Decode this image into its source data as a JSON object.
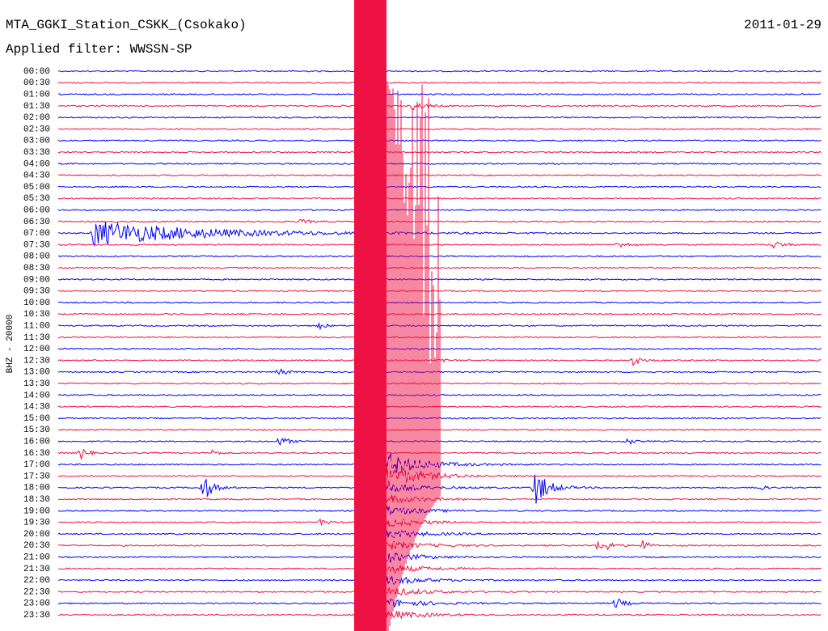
{
  "header": {
    "station": "MTA_GGKI_Station_CSKK_(Csokako)",
    "date": "2011-01-29",
    "filter": "Applied filter: WWSSN-SP"
  },
  "axis_label": "BHZ - 20000",
  "rows": [
    "00:00",
    "00:30",
    "01:00",
    "01:30",
    "02:00",
    "02:30",
    "03:00",
    "03:30",
    "04:00",
    "04:30",
    "05:00",
    "05:30",
    "06:00",
    "06:30",
    "07:00",
    "07:30",
    "08:00",
    "08:30",
    "09:00",
    "09:30",
    "10:00",
    "10:30",
    "11:00",
    "11:30",
    "12:00",
    "12:30",
    "13:00",
    "13:30",
    "14:00",
    "14:30",
    "15:00",
    "15:30",
    "16:00",
    "16:30",
    "17:00",
    "17:30",
    "18:00",
    "18:30",
    "19:00",
    "19:30",
    "20:00",
    "20:30",
    "21:00",
    "21:30",
    "22:00",
    "22:30",
    "23:00",
    "23:30"
  ]
}
